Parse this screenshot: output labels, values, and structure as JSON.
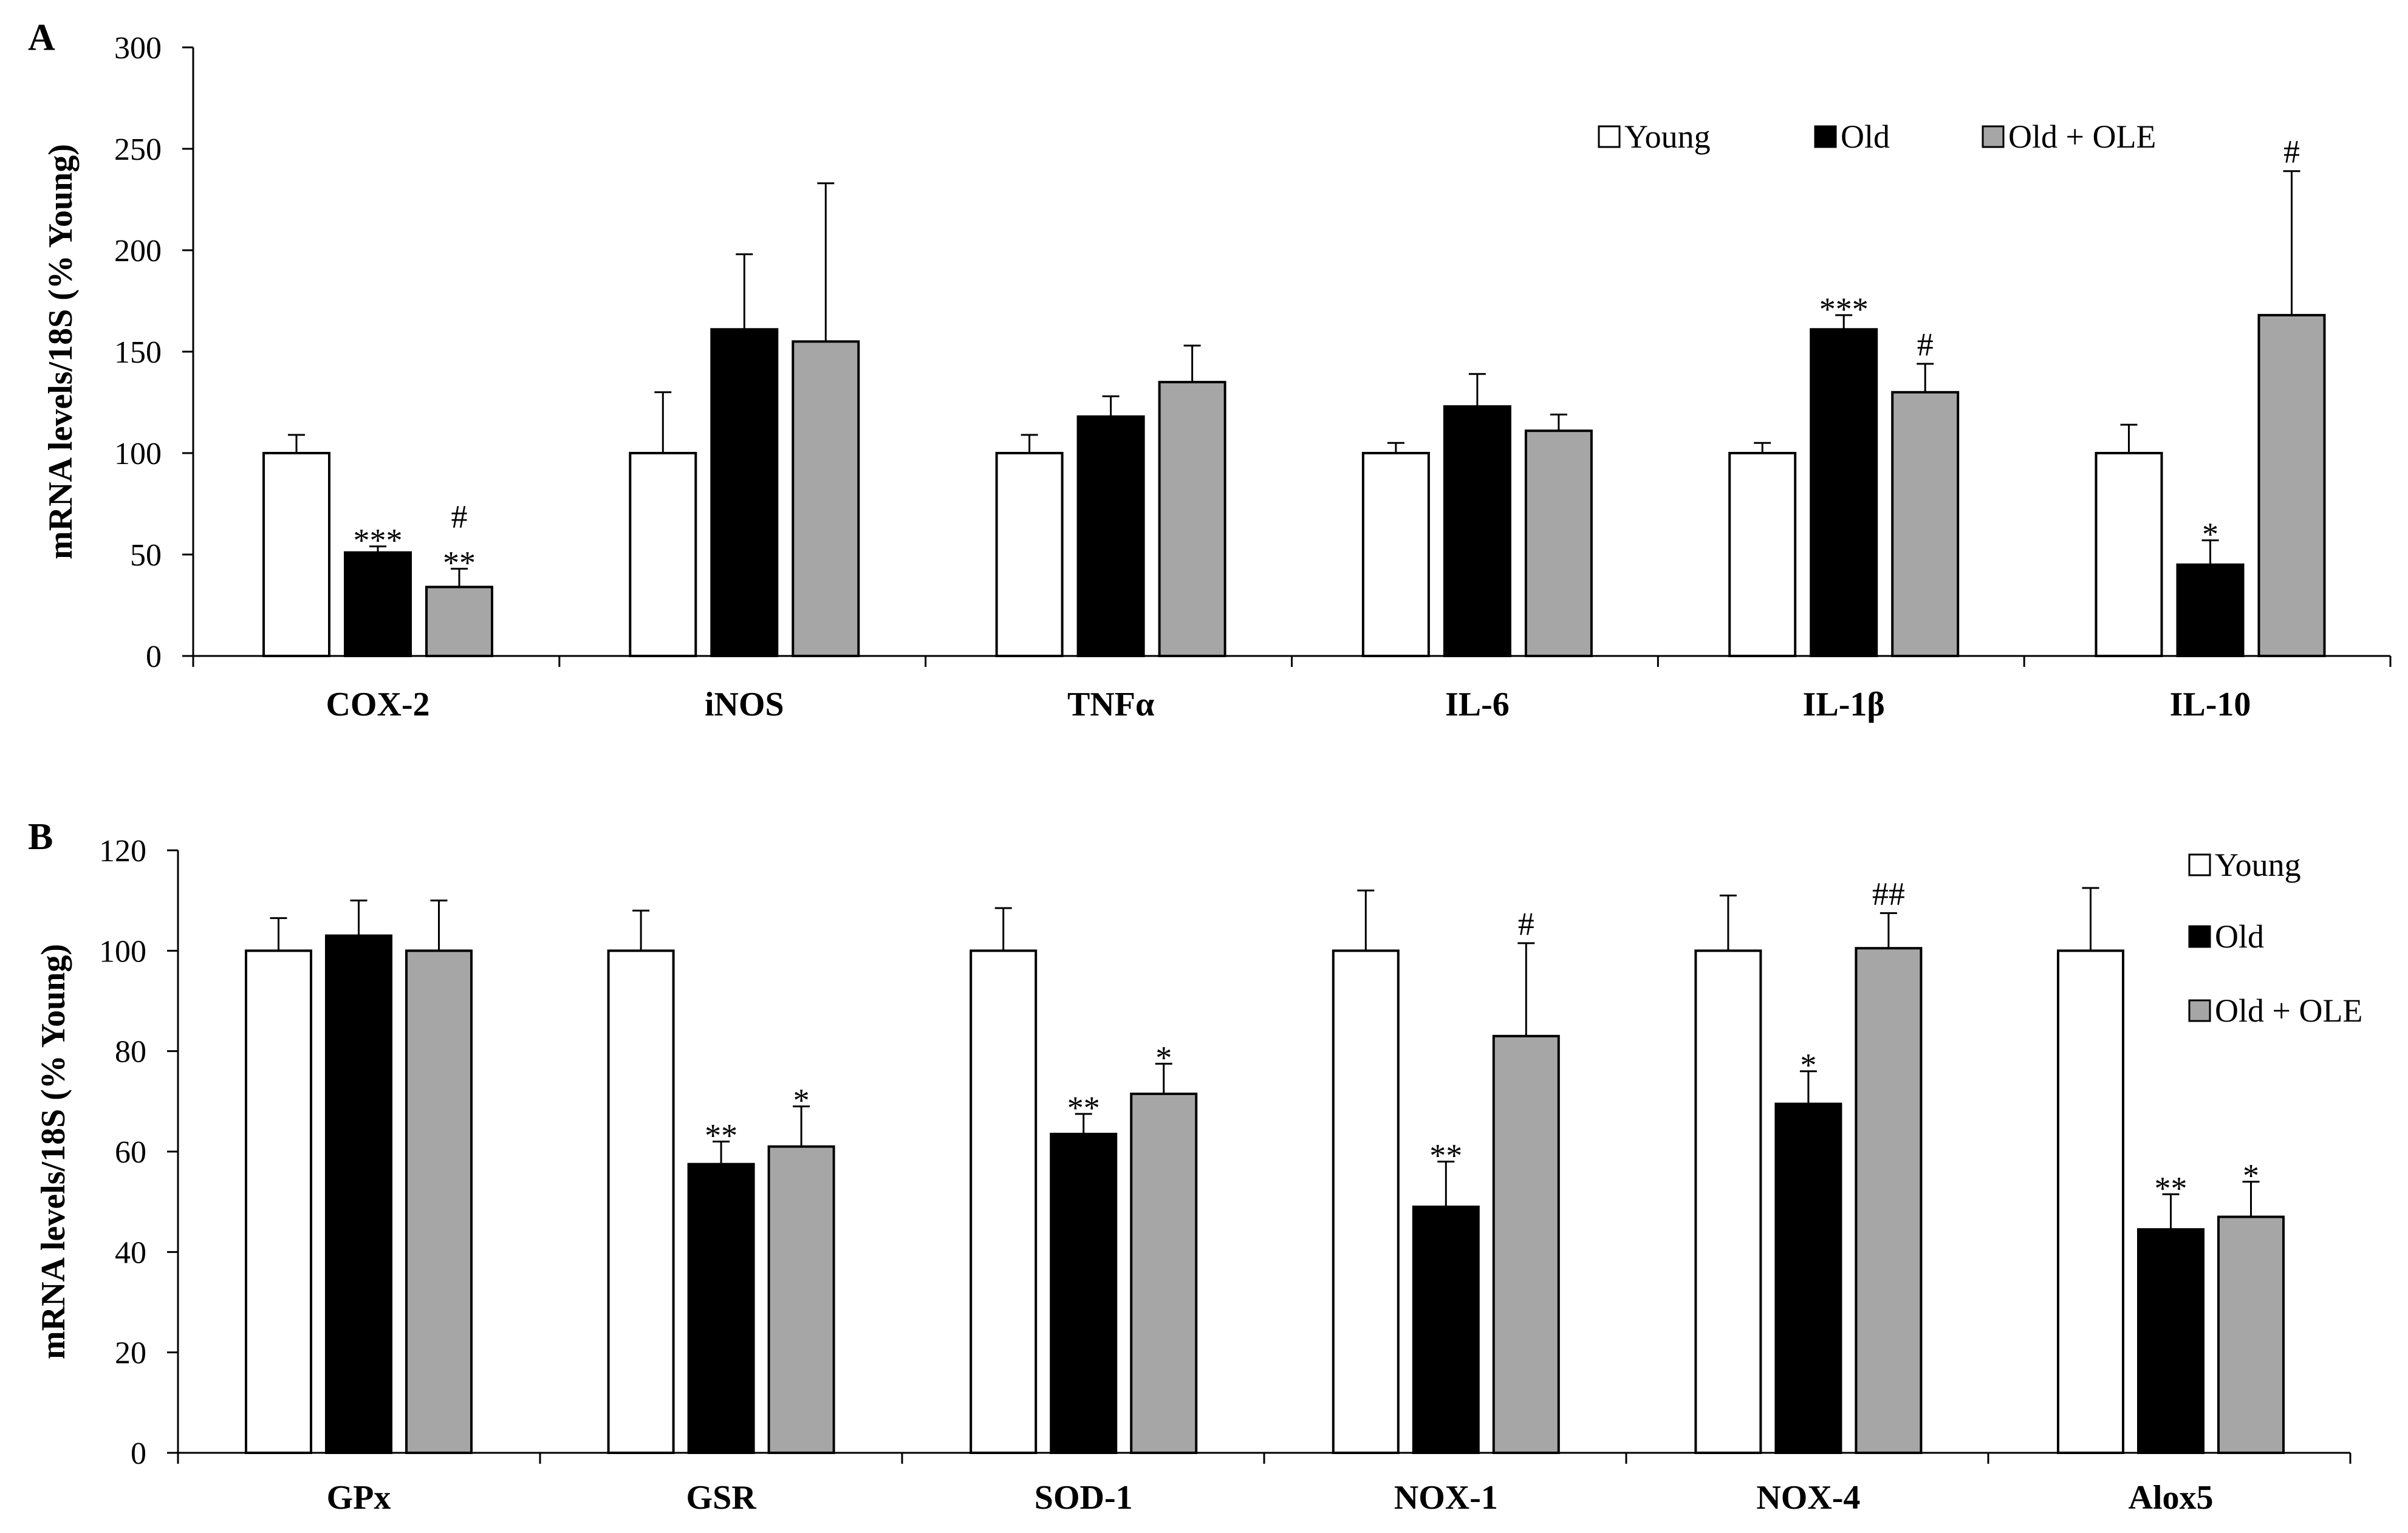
{
  "chart_data": [
    {
      "panel": "A",
      "type": "bar",
      "ylabel": "mRNA levels/18S (% Young)",
      "ylim": [
        0,
        300
      ],
      "yticks": [
        "0",
        "50",
        "100",
        "150",
        "200",
        "250",
        "300"
      ],
      "categories": [
        "COX-2",
        "iNOS",
        "TNFα",
        "IL-6",
        "IL-1β",
        "IL-10"
      ],
      "series": [
        {
          "name": "Young",
          "color": "#ffffff",
          "values": [
            100,
            100,
            100,
            100,
            100,
            100
          ],
          "errors": [
            9,
            30,
            9,
            5,
            5,
            14
          ]
        },
        {
          "name": "Old",
          "color": "#000000",
          "values": [
            51,
            161,
            118,
            123,
            161,
            45
          ],
          "errors": [
            3,
            37,
            10,
            16,
            7,
            12
          ]
        },
        {
          "name": "Old + OLE",
          "color": "#a6a6a6",
          "values": [
            34,
            155,
            135,
            111,
            130,
            168
          ],
          "errors": [
            9,
            78,
            18,
            8,
            14,
            71
          ]
        }
      ],
      "annotations": [
        {
          "category": "COX-2",
          "series": "Old",
          "text": "***"
        },
        {
          "category": "COX-2",
          "series": "Old + OLE",
          "text": "**"
        },
        {
          "category": "COX-2",
          "series": "Old + OLE",
          "text": "#"
        },
        {
          "category": "IL-1β",
          "series": "Old",
          "text": "***"
        },
        {
          "category": "IL-1β",
          "series": "Old + OLE",
          "text": "#"
        },
        {
          "category": "IL-10",
          "series": "Old",
          "text": "*"
        },
        {
          "category": "IL-10",
          "series": "Old + OLE",
          "text": "#"
        }
      ],
      "legend": {
        "placement": "top-right",
        "layout": "horizontal",
        "labels": [
          "Young",
          "Old",
          "Old + OLE"
        ]
      }
    },
    {
      "panel": "B",
      "type": "bar",
      "ylabel": "mRNA levels/18S (% Young)",
      "ylim": [
        0,
        120
      ],
      "yticks": [
        "0",
        "20",
        "40",
        "60",
        "80",
        "100",
        "120"
      ],
      "categories": [
        "GPx",
        "GSR",
        "SOD-1",
        "NOX-1",
        "NOX-4",
        "Alox5"
      ],
      "series": [
        {
          "name": "Young",
          "color": "#ffffff",
          "values": [
            100,
            100,
            100,
            100,
            100,
            100
          ],
          "errors": [
            6.5,
            8,
            8.5,
            12,
            11,
            12.5
          ]
        },
        {
          "name": "Old",
          "color": "#000000",
          "values": [
            103,
            57.5,
            63.5,
            49,
            69.5,
            44.5
          ],
          "errors": [
            7,
            4.5,
            4,
            9,
            6.5,
            7
          ]
        },
        {
          "name": "Old + OLE",
          "color": "#a6a6a6",
          "values": [
            100,
            61,
            71.5,
            83,
            100.5,
            47
          ],
          "errors": [
            10,
            8,
            6,
            18.5,
            7,
            7
          ]
        }
      ],
      "annotations": [
        {
          "category": "GSR",
          "series": "Old",
          "text": "**"
        },
        {
          "category": "GSR",
          "series": "Old + OLE",
          "text": "*"
        },
        {
          "category": "SOD-1",
          "series": "Old",
          "text": "**"
        },
        {
          "category": "SOD-1",
          "series": "Old + OLE",
          "text": "*"
        },
        {
          "category": "NOX-1",
          "series": "Old",
          "text": "**"
        },
        {
          "category": "NOX-1",
          "series": "Old + OLE",
          "text": "#"
        },
        {
          "category": "NOX-4",
          "series": "Old",
          "text": "*"
        },
        {
          "category": "NOX-4",
          "series": "Old + OLE",
          "text": "##"
        },
        {
          "category": "Alox5",
          "series": "Old",
          "text": "**"
        },
        {
          "category": "Alox5",
          "series": "Old + OLE",
          "text": "*"
        }
      ],
      "legend": {
        "placement": "right",
        "layout": "vertical",
        "labels": [
          "Young",
          "Old",
          "Old + OLE"
        ]
      }
    }
  ]
}
